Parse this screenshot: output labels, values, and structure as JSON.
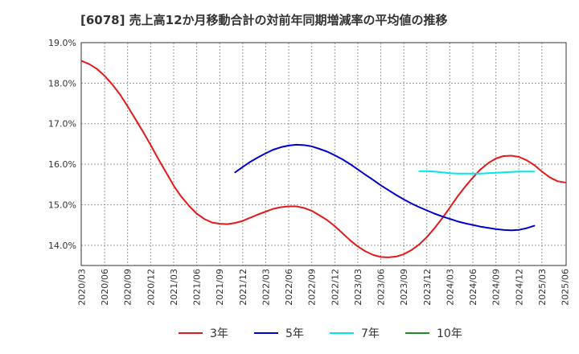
{
  "chart_data": {
    "type": "line",
    "title": "[6078]  売上高12か月移動合計の対前年同期増減率の平均値の推移",
    "xlabel": "",
    "ylabel": "",
    "ylim": [
      13.5,
      19.0
    ],
    "y_ticks": [
      "14.0%",
      "15.0%",
      "16.0%",
      "17.0%",
      "18.0%",
      "19.0%"
    ],
    "y_tick_values": [
      14.0,
      15.0,
      16.0,
      17.0,
      18.0,
      19.0
    ],
    "x_ticks": [
      "2020/03",
      "2020/06",
      "2020/09",
      "2020/12",
      "2021/03",
      "2021/06",
      "2021/09",
      "2021/12",
      "2022/03",
      "2022/06",
      "2022/09",
      "2022/12",
      "2023/03",
      "2023/06",
      "2023/09",
      "2023/12",
      "2024/03",
      "2024/06",
      "2024/09",
      "2024/12",
      "2025/03",
      "2025/06"
    ],
    "grid": true,
    "legend_position": "bottom",
    "series": [
      {
        "name": "3年",
        "color": "#e31a1c",
        "points": [
          [
            0,
            18.55
          ],
          [
            0.33,
            18.47
          ],
          [
            0.67,
            18.35
          ],
          [
            1,
            18.18
          ],
          [
            1.33,
            17.97
          ],
          [
            1.67,
            17.72
          ],
          [
            2,
            17.43
          ],
          [
            2.33,
            17.12
          ],
          [
            2.67,
            16.8
          ],
          [
            3,
            16.47
          ],
          [
            3.33,
            16.13
          ],
          [
            3.67,
            15.8
          ],
          [
            4,
            15.47
          ],
          [
            4.33,
            15.2
          ],
          [
            4.67,
            14.97
          ],
          [
            5,
            14.78
          ],
          [
            5.33,
            14.65
          ],
          [
            5.67,
            14.56
          ],
          [
            6,
            14.53
          ],
          [
            6.33,
            14.52
          ],
          [
            6.67,
            14.55
          ],
          [
            7,
            14.6
          ],
          [
            7.33,
            14.68
          ],
          [
            7.67,
            14.76
          ],
          [
            8,
            14.83
          ],
          [
            8.33,
            14.9
          ],
          [
            8.67,
            14.94
          ],
          [
            9,
            14.96
          ],
          [
            9.33,
            14.96
          ],
          [
            9.67,
            14.92
          ],
          [
            10,
            14.85
          ],
          [
            10.33,
            14.74
          ],
          [
            10.67,
            14.62
          ],
          [
            11,
            14.47
          ],
          [
            11.33,
            14.3
          ],
          [
            11.67,
            14.12
          ],
          [
            12,
            13.97
          ],
          [
            12.33,
            13.85
          ],
          [
            12.67,
            13.76
          ],
          [
            13,
            13.71
          ],
          [
            13.33,
            13.7
          ],
          [
            13.67,
            13.72
          ],
          [
            14,
            13.78
          ],
          [
            14.33,
            13.88
          ],
          [
            14.67,
            14.02
          ],
          [
            15,
            14.2
          ],
          [
            15.33,
            14.42
          ],
          [
            15.67,
            14.67
          ],
          [
            16,
            14.93
          ],
          [
            16.33,
            15.2
          ],
          [
            16.67,
            15.45
          ],
          [
            17,
            15.67
          ],
          [
            17.33,
            15.87
          ],
          [
            17.67,
            16.03
          ],
          [
            18,
            16.14
          ],
          [
            18.33,
            16.2
          ],
          [
            18.67,
            16.21
          ],
          [
            19,
            16.18
          ],
          [
            19.33,
            16.1
          ],
          [
            19.67,
            15.98
          ],
          [
            20,
            15.82
          ],
          [
            20.33,
            15.68
          ],
          [
            20.67,
            15.58
          ],
          [
            21,
            15.55
          ]
        ]
      },
      {
        "name": "5年",
        "color": "#0000cc",
        "points": [
          [
            6.67,
            15.8
          ],
          [
            7,
            15.93
          ],
          [
            7.33,
            16.06
          ],
          [
            7.67,
            16.17
          ],
          [
            8,
            16.27
          ],
          [
            8.33,
            16.36
          ],
          [
            8.67,
            16.42
          ],
          [
            9,
            16.46
          ],
          [
            9.33,
            16.48
          ],
          [
            9.67,
            16.47
          ],
          [
            10,
            16.44
          ],
          [
            10.33,
            16.38
          ],
          [
            10.67,
            16.31
          ],
          [
            11,
            16.22
          ],
          [
            11.33,
            16.12
          ],
          [
            11.67,
            16.0
          ],
          [
            12,
            15.87
          ],
          [
            12.33,
            15.74
          ],
          [
            12.67,
            15.61
          ],
          [
            13,
            15.48
          ],
          [
            13.33,
            15.36
          ],
          [
            13.67,
            15.24
          ],
          [
            14,
            15.13
          ],
          [
            14.33,
            15.03
          ],
          [
            14.67,
            14.94
          ],
          [
            15,
            14.86
          ],
          [
            15.33,
            14.78
          ],
          [
            15.67,
            14.71
          ],
          [
            16,
            14.65
          ],
          [
            16.33,
            14.59
          ],
          [
            16.67,
            14.54
          ],
          [
            17,
            14.5
          ],
          [
            17.33,
            14.46
          ],
          [
            17.67,
            14.43
          ],
          [
            18,
            14.4
          ],
          [
            18.33,
            14.38
          ],
          [
            18.67,
            14.37
          ],
          [
            19,
            14.38
          ],
          [
            19.33,
            14.42
          ],
          [
            19.67,
            14.48
          ]
        ]
      },
      {
        "name": "7年",
        "color": "#00e5ee",
        "points": [
          [
            14.67,
            15.83
          ],
          [
            15,
            15.83
          ],
          [
            15.33,
            15.82
          ],
          [
            15.67,
            15.8
          ],
          [
            16,
            15.78
          ],
          [
            16.33,
            15.77
          ],
          [
            16.67,
            15.77
          ],
          [
            17,
            15.77
          ],
          [
            17.33,
            15.77
          ],
          [
            17.67,
            15.78
          ],
          [
            18,
            15.79
          ],
          [
            18.33,
            15.8
          ],
          [
            18.67,
            15.81
          ],
          [
            19,
            15.82
          ],
          [
            19.33,
            15.82
          ],
          [
            19.67,
            15.82
          ]
        ]
      },
      {
        "name": "10年",
        "color": "#228b22",
        "points": []
      }
    ]
  }
}
